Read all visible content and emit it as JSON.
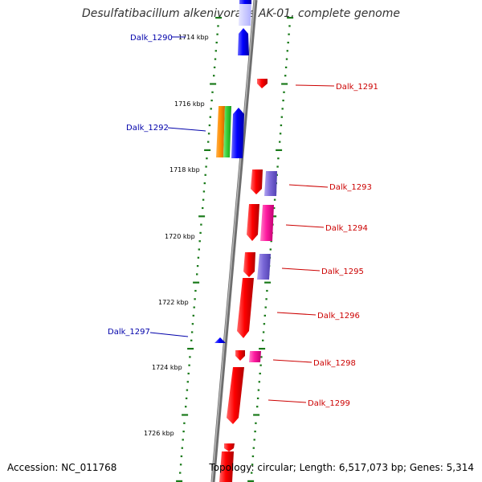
{
  "title": "Desulfatibacillum alkenivorans AK-01, complete genome",
  "accession": "Accession: NC_011768",
  "topology": "Topology: circular; Length: 6,517,073 bp; Genes: 5,314",
  "colors": {
    "backbone": "#888888",
    "ruler": "#1a7a1a",
    "left_label": "#0000aa",
    "right_label": "#cc0000",
    "red": "#ff0000",
    "blue": "#0000ff",
    "magenta": "#ff1aa0",
    "lavender": "#7b68d8",
    "orange": "#ff8c00",
    "green": "#33cc33"
  },
  "position_ticks": [
    {
      "label": "1714 kbp",
      "kbp": 1714
    },
    {
      "label": "1716 kbp",
      "kbp": 1716
    },
    {
      "label": "1718 kbp",
      "kbp": 1718
    },
    {
      "label": "1720 kbp",
      "kbp": 1720
    },
    {
      "label": "1722 kbp",
      "kbp": 1722
    },
    {
      "label": "1724 kbp",
      "kbp": 1724
    },
    {
      "label": "1726 kbp",
      "kbp": 1726
    }
  ],
  "gene_labels": [
    {
      "name": "Dalk_1290",
      "side": "left"
    },
    {
      "name": "Dalk_1291",
      "side": "right"
    },
    {
      "name": "Dalk_1292",
      "side": "left"
    },
    {
      "name": "Dalk_1293",
      "side": "right"
    },
    {
      "name": "Dalk_1294",
      "side": "right"
    },
    {
      "name": "Dalk_1295",
      "side": "right"
    },
    {
      "name": "Dalk_1296",
      "side": "right"
    },
    {
      "name": "Dalk_1297",
      "side": "left"
    },
    {
      "name": "Dalk_1298",
      "side": "right"
    },
    {
      "name": "Dalk_1299",
      "side": "right"
    }
  ]
}
